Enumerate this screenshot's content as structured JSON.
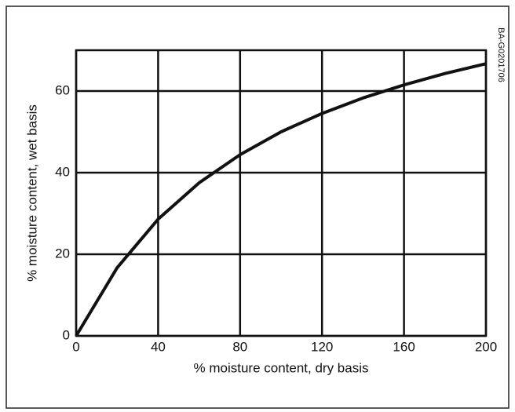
{
  "chart_data": {
    "type": "line",
    "x_label": "% moisture content, dry basis",
    "y_label": "% moisture content, wet basis",
    "annotation": "BA-G0201706",
    "x": [
      0,
      20,
      40,
      60,
      80,
      100,
      120,
      140,
      160,
      180,
      200
    ],
    "series": [
      {
        "name": "wet basis",
        "color": "#111111",
        "values": [
          0,
          16.7,
          28.6,
          37.5,
          44.4,
          50,
          54.5,
          58.3,
          61.5,
          64.3,
          66.7
        ]
      }
    ],
    "xlim": [
      0,
      200
    ],
    "xticks": [
      0,
      40,
      80,
      120,
      160,
      200
    ],
    "ylim": [
      0,
      70
    ],
    "yticks": [
      0,
      20,
      40,
      60
    ],
    "grid": true
  }
}
